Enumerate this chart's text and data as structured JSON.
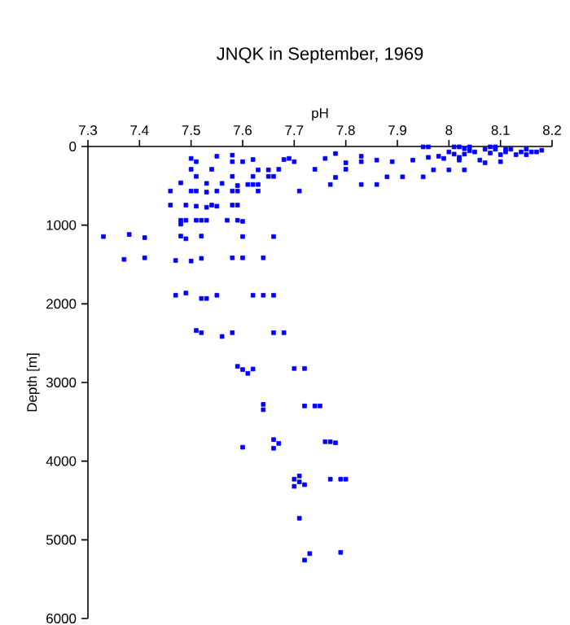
{
  "chart_data": {
    "type": "scatter",
    "title": "JNQK in September, 1969",
    "xlabel": "pH",
    "ylabel": "Depth [m]",
    "xlim": [
      7.3,
      8.2
    ],
    "xticks": [
      7.3,
      7.4,
      7.5,
      7.6,
      7.7,
      7.8,
      7.9,
      8,
      8.1,
      8.2
    ],
    "ylim": [
      6000,
      0
    ],
    "yticks": [
      0,
      1000,
      2000,
      3000,
      4000,
      5000,
      6000
    ],
    "marker": "square",
    "series": [
      {
        "color": "#0000ff",
        "x": [
          7.5,
          7.51,
          7.55,
          7.58,
          7.58,
          7.6,
          7.62,
          7.68,
          7.69,
          7.7,
          7.76,
          7.5,
          7.54,
          7.58,
          7.63,
          7.65,
          7.67,
          7.74,
          7.51,
          7.62,
          7.65,
          7.66,
          7.48,
          7.53,
          7.56,
          7.59,
          7.61,
          7.63,
          7.62,
          7.46,
          7.5,
          7.51,
          7.53,
          7.55,
          7.58,
          7.59,
          7.63,
          7.71,
          7.46,
          7.49,
          7.51,
          7.53,
          7.54,
          7.55,
          7.58,
          7.59,
          7.48,
          7.49,
          7.51,
          7.52,
          7.53,
          7.57,
          7.59,
          7.6,
          7.48,
          7.33,
          7.38,
          7.41,
          7.48,
          7.49,
          7.52,
          7.6,
          7.66,
          7.37,
          7.41,
          7.47,
          7.5,
          7.52,
          7.58,
          7.6,
          7.64,
          7.47,
          7.49,
          7.52,
          7.53,
          7.55,
          7.62,
          7.64,
          7.66,
          7.51,
          7.52,
          7.56,
          7.58,
          7.66,
          7.68,
          7.59,
          7.6,
          7.61,
          7.62,
          7.7,
          7.72,
          7.64,
          7.64,
          7.72,
          7.74,
          7.75,
          7.6,
          7.66,
          7.66,
          7.67,
          7.76,
          7.77,
          7.78,
          7.7,
          7.71,
          7.71,
          7.7,
          7.72,
          7.77,
          7.79,
          7.8,
          7.71,
          7.73,
          7.72,
          7.79,
          7.77,
          7.78,
          7.78,
          7.8,
          7.8,
          7.83,
          7.83,
          7.83,
          7.86,
          7.86,
          7.88,
          7.89,
          7.91,
          7.93,
          7.95,
          7.95,
          7.96,
          7.96,
          7.97,
          7.98,
          7.99,
          8.0,
          8.0,
          8.01,
          8.01,
          8.02,
          8.02,
          8.03,
          8.03,
          8.03,
          8.04,
          8.04,
          8.05,
          8.06,
          8.07,
          8.07,
          8.08,
          8.08,
          8.09,
          8.09,
          8.1,
          8.1,
          8.11,
          8.11,
          8.12,
          8.13,
          8.14,
          8.15,
          8.15,
          8.16,
          8.17,
          8.18,
          8.02
        ],
        "values": [
          152,
          193,
          124,
          110,
          193,
          193,
          166,
          166,
          152,
          193,
          152,
          290,
          290,
          380,
          297,
          297,
          290,
          290,
          380,
          380,
          380,
          380,
          462,
          469,
          469,
          497,
          483,
          483,
          483,
          566,
          566,
          566,
          580,
          566,
          566,
          566,
          566,
          566,
          745,
          745,
          759,
          773,
          745,
          759,
          745,
          745,
          938,
          938,
          938,
          938,
          938,
          938,
          938,
          952,
          987,
          1145,
          1118,
          1159,
          1139,
          1173,
          1139,
          1145,
          1145,
          1435,
          1415,
          1449,
          1456,
          1422,
          1415,
          1415,
          1415,
          1891,
          1863,
          1932,
          1932,
          1891,
          1891,
          1891,
          1891,
          2339,
          2367,
          2415,
          2367,
          2367,
          2367,
          2795,
          2836,
          2884,
          2829,
          2822,
          2822,
          3278,
          3346,
          3298,
          3298,
          3298,
          3823,
          3726,
          3836,
          3774,
          3753,
          3753,
          3767,
          4229,
          4188,
          4264,
          4320,
          4299,
          4229,
          4229,
          4229,
          4726,
          5175,
          5258,
          5160,
          483,
          90,
          393,
          207,
          290,
          124,
          193,
          483,
          173,
          483,
          386,
          193,
          386,
          173,
          386,
          5,
          5,
          138,
          297,
          124,
          152,
          69,
          297,
          97,
          5,
          5,
          138,
          297,
          28,
          97,
          55,
          5,
          69,
          173,
          35,
          207,
          5,
          83,
          35,
          5,
          193,
          104,
          35,
          69,
          35,
          104,
          69,
          35,
          104,
          69,
          69,
          48,
          173
        ]
      }
    ]
  }
}
